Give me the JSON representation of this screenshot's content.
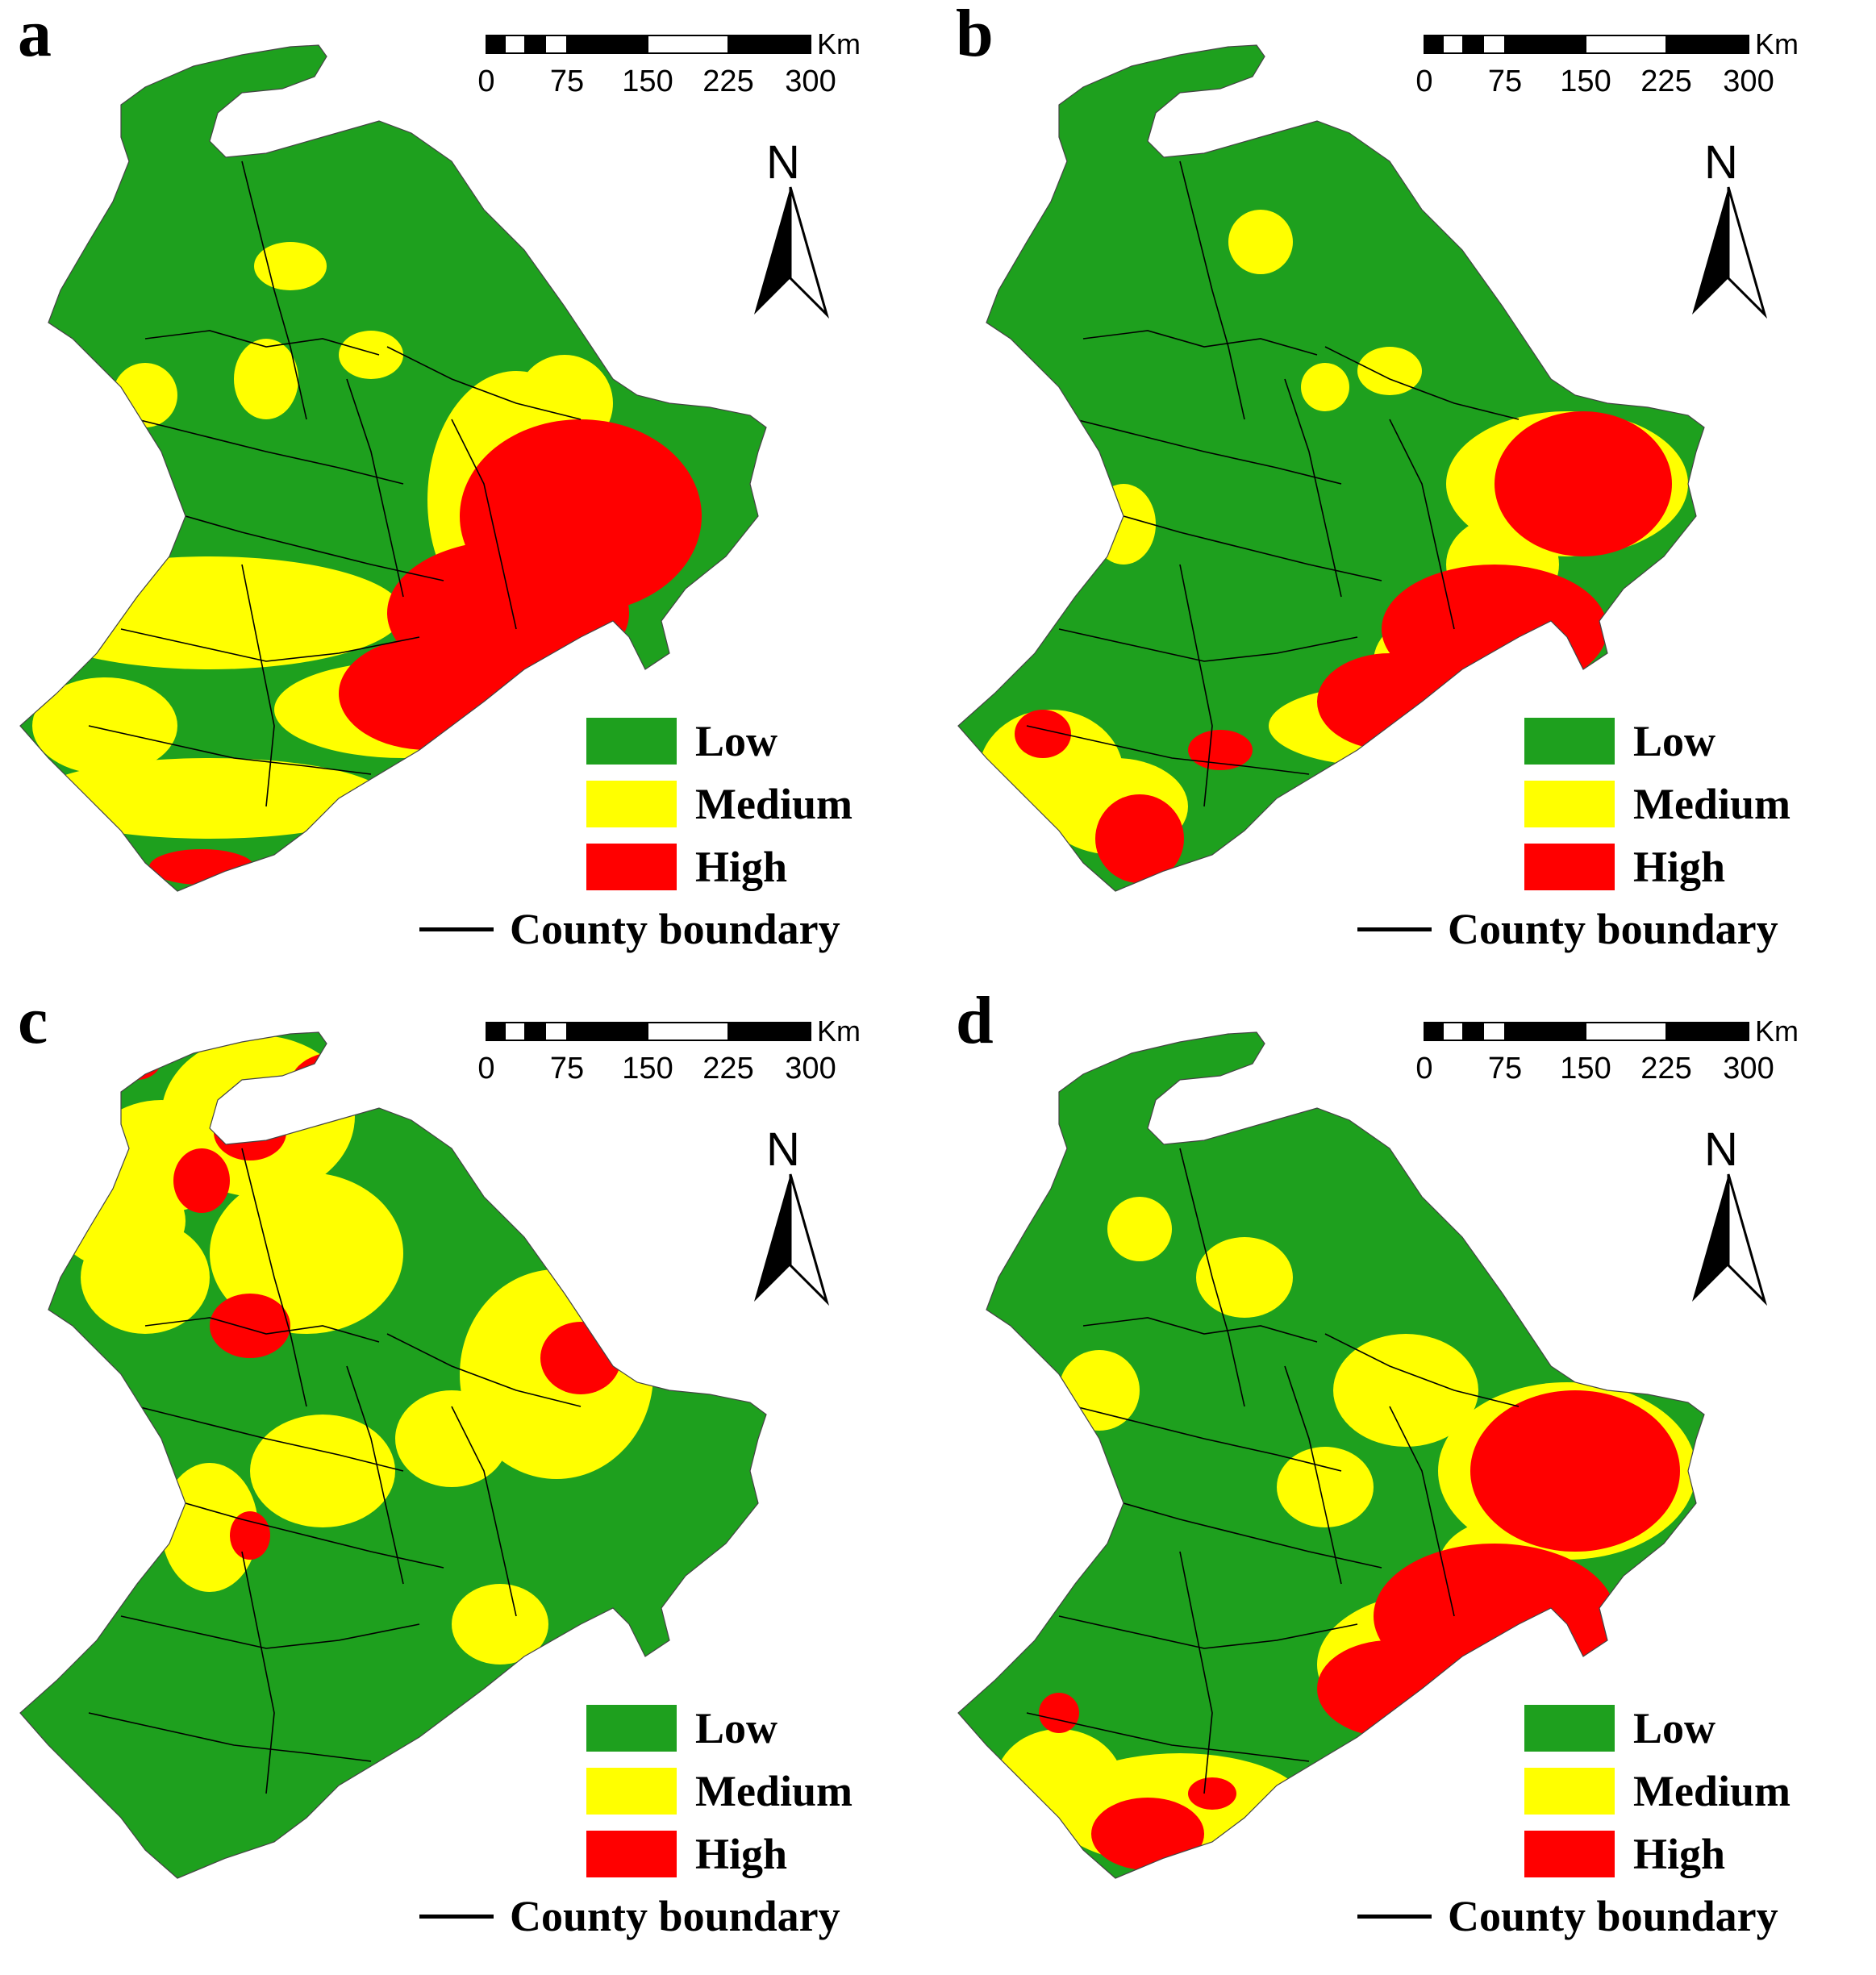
{
  "colors": {
    "low": "#1ea01e",
    "medium": "#ffff00",
    "high": "#ff0000",
    "boundary": "#000000"
  },
  "scale": {
    "unit": "Km",
    "ticks": [
      "0",
      "75",
      "150",
      "225",
      "300"
    ]
  },
  "north_arrow": {
    "label": "N"
  },
  "legend": {
    "low": "Low",
    "medium": "Medium",
    "high": "High",
    "county_boundary": "County boundary"
  },
  "panels": [
    {
      "letter": "a"
    },
    {
      "letter": "b"
    },
    {
      "letter": "c"
    },
    {
      "letter": "d"
    }
  ]
}
